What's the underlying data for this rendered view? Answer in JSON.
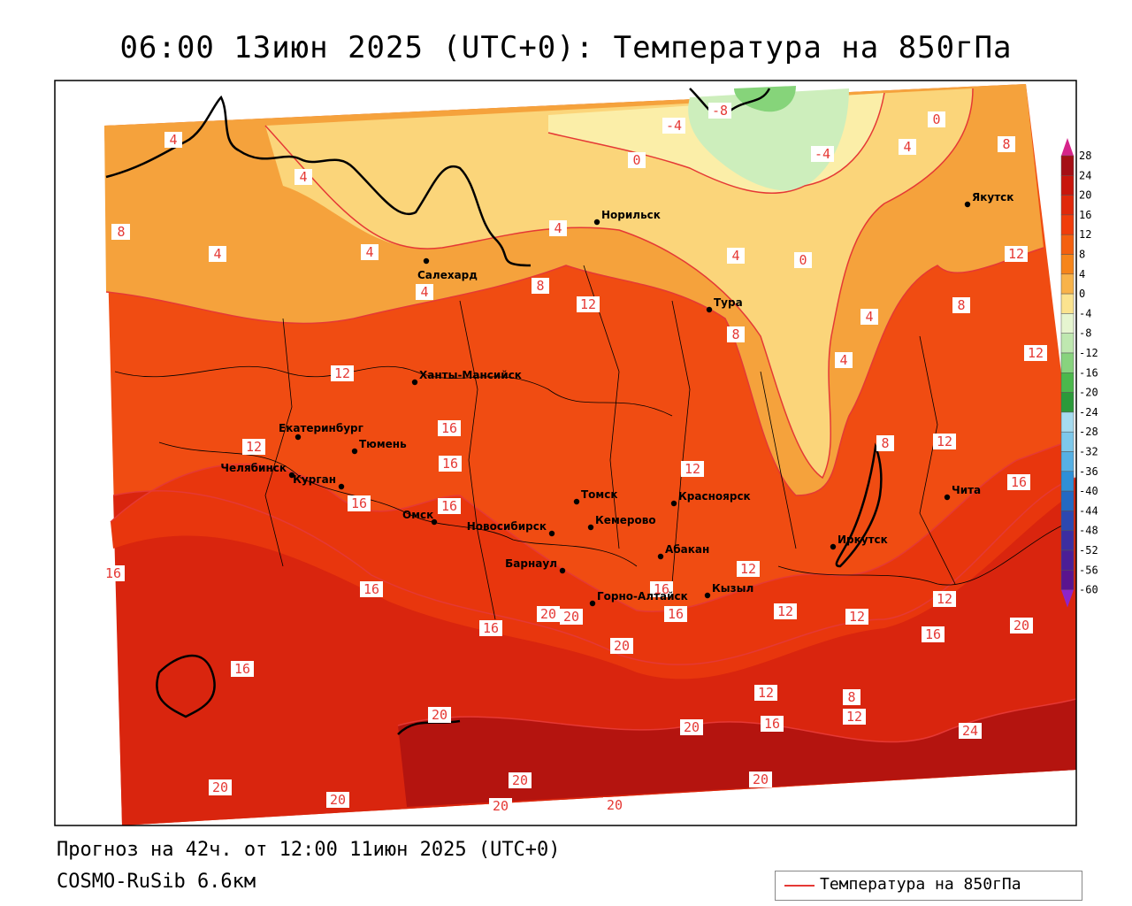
{
  "title": "06:00 13июн 2025 (UTC+0): Температура на 850гПа",
  "forecast_text": "Прогноз на 42ч. от 12:00 11июн 2025 (UTC+0)",
  "model_text": "COSMO-RuSib 6.6км",
  "legend": {
    "label": "Температура на 850гПа",
    "line_color": "#e53935"
  },
  "colorbar": {
    "levels": [
      "28",
      "24",
      "20",
      "16",
      "12",
      "8",
      "4",
      "0",
      "-4",
      "-8",
      "-12",
      "-16",
      "-20",
      "-24",
      "-28",
      "-32",
      "-36",
      "-40",
      "-44",
      "-48",
      "-52",
      "-56",
      "-60"
    ],
    "colors": [
      "#a50f15",
      "#c8160c",
      "#e0290b",
      "#f03d0b",
      "#f4600f",
      "#f6851a",
      "#f8b34a",
      "#fbe38f",
      "#e6f5d0",
      "#bfe8b0",
      "#88d37e",
      "#4cb84c",
      "#2c9a3a",
      "#a6dbef",
      "#7ec8ea",
      "#56b0e4",
      "#2f8fd6",
      "#2369c2",
      "#2d48b0",
      "#3c2ea0",
      "#4b1e96",
      "#5a148e",
      "#6a0a88"
    ]
  },
  "cities": [
    {
      "name": "Норильск"
    },
    {
      "name": "Якутск"
    },
    {
      "name": "Салехард"
    },
    {
      "name": "Тура"
    },
    {
      "name": "Ханты-Мансийск"
    },
    {
      "name": "Екатеринбург"
    },
    {
      "name": "Тюмень"
    },
    {
      "name": "Челябинск"
    },
    {
      "name": "Курган"
    },
    {
      "name": "Омск"
    },
    {
      "name": "Томск"
    },
    {
      "name": "Красноярск"
    },
    {
      "name": "Новосибирск"
    },
    {
      "name": "Кемерово"
    },
    {
      "name": "Абакан"
    },
    {
      "name": "Барнаул"
    },
    {
      "name": "Горно-Алтайск"
    },
    {
      "name": "Кызыл"
    },
    {
      "name": "Иркутск"
    },
    {
      "name": "Чита"
    }
  ],
  "isotherm_labels": [
    "4",
    "4",
    "4",
    "4",
    "4",
    "4",
    "4",
    "8",
    "8",
    "12",
    "12",
    "12",
    "8",
    "16",
    "16",
    "16",
    "16",
    "16",
    "16",
    "16",
    "20",
    "20",
    "20",
    "20",
    "20",
    "20",
    "20",
    "20",
    "20",
    "20",
    "20",
    "24",
    "16",
    "16",
    "12",
    "12",
    "12",
    "12",
    "8",
    "12",
    "12",
    "12",
    "16",
    "16",
    "20",
    "8",
    "8",
    "8",
    "8",
    "12",
    "12",
    "12",
    "4",
    "4",
    "4",
    "0",
    "0",
    "-4",
    "-4",
    "-8",
    "0",
    "4",
    "8",
    "16",
    "16"
  ]
}
